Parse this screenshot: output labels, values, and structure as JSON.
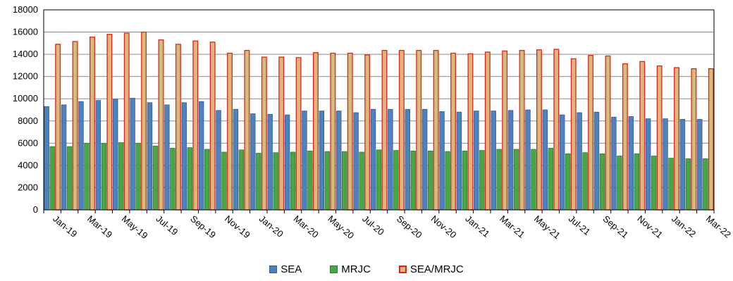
{
  "chart_data": {
    "type": "bar",
    "ylim": [
      0,
      18000
    ],
    "yticks": [
      "0",
      "2000",
      "4000",
      "6000",
      "8000",
      "10000",
      "12000",
      "14000",
      "16000",
      "18000"
    ],
    "grid": true,
    "legend_position": "bottom-center",
    "categories": [
      "Jan-19",
      "Feb-19",
      "Mar-19",
      "Apr-19",
      "May-19",
      "Jun-19",
      "Jul-19",
      "Aug-19",
      "Sep-19",
      "Oct-19",
      "Nov-19",
      "Dec-19",
      "Jan-20",
      "Feb-20",
      "Mar-20",
      "Apr-20",
      "May-20",
      "Jun-20",
      "Jul-20",
      "Aug-20",
      "Sep-20",
      "Oct-20",
      "Nov-20",
      "Dec-20",
      "Jan-21",
      "Feb-21",
      "Mar-21",
      "Apr-21",
      "May-21",
      "Jun-21",
      "Jul-21",
      "Aug-21",
      "Sep-21",
      "Oct-21",
      "Nov-21",
      "Dec-21",
      "Jan-22",
      "Feb-22",
      "Mar-22"
    ],
    "xtick_labels": [
      "Jan-19",
      "Mar-19",
      "May-19",
      "Jul-19",
      "Sep-19",
      "Nov-19",
      "Jan-20",
      "Mar-20",
      "May-20",
      "Jul-20",
      "Sep-20",
      "Nov-20",
      "Jan-21",
      "Mar-21",
      "May-21",
      "Jul-21",
      "Sep-21",
      "Nov-21",
      "Jan-22",
      "Mar-22"
    ],
    "series": [
      {
        "name": "SEA",
        "color": "#4f81bd",
        "edge": "#2c5d9a",
        "values": [
          9300,
          9450,
          9750,
          9850,
          9950,
          10050,
          9650,
          9450,
          9650,
          9750,
          8950,
          9050,
          8650,
          8600,
          8550,
          8900,
          8900,
          8900,
          8750,
          9050,
          9050,
          9050,
          9050,
          8850,
          8800,
          8900,
          8900,
          8950,
          9000,
          9000,
          8550,
          8750,
          8800,
          8350,
          8400,
          8200,
          8200,
          8150,
          8150
        ]
      },
      {
        "name": "MRJC",
        "color": "#4aa547",
        "edge": "#2e7d32",
        "values": [
          5700,
          5700,
          6000,
          6000,
          6050,
          6000,
          5750,
          5550,
          5600,
          5450,
          5200,
          5400,
          5100,
          5150,
          5200,
          5300,
          5250,
          5250,
          5200,
          5400,
          5350,
          5300,
          5300,
          5250,
          5300,
          5350,
          5450,
          5450,
          5450,
          5550,
          5050,
          5150,
          5050,
          4850,
          5050,
          4850,
          4650,
          4600,
          4600
        ]
      },
      {
        "name": "SEA/MRJC",
        "color": "#d8b97c",
        "edge": "#e8201c",
        "values": [
          14900,
          15150,
          15550,
          15800,
          15900,
          16000,
          15300,
          14900,
          15200,
          15100,
          14100,
          14350,
          13750,
          13750,
          13700,
          14150,
          14100,
          14100,
          13950,
          14350,
          14350,
          14350,
          14350,
          14100,
          14050,
          14200,
          14300,
          14350,
          14400,
          14450,
          13600,
          13900,
          13850,
          13150,
          13350,
          12950,
          12800,
          12700,
          12700
        ]
      }
    ]
  }
}
